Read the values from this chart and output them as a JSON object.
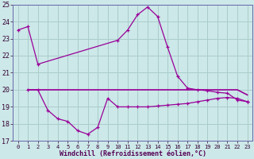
{
  "xlabel": "Windchill (Refroidissement éolien,°C)",
  "line_color": "#990099",
  "bg_color": "#cce8e8",
  "grid_color": "#aacccc",
  "ylim": [
    17,
    25
  ],
  "yticks": [
    17,
    18,
    19,
    20,
    21,
    22,
    23,
    24,
    25
  ],
  "xlim": [
    -0.5,
    23.5
  ],
  "line1_x": [
    0,
    1,
    2,
    10,
    11,
    12,
    13,
    14,
    15,
    16,
    17,
    18,
    19,
    20,
    21,
    22,
    23
  ],
  "line1_y": [
    23.5,
    23.7,
    21.5,
    22.9,
    23.5,
    24.4,
    24.85,
    24.3,
    22.5,
    20.8,
    20.1,
    20.0,
    19.95,
    19.85,
    19.8,
    19.4,
    19.3
  ],
  "line2_x": [
    1,
    2,
    3,
    4,
    5,
    6,
    7,
    8,
    9,
    10,
    11,
    12,
    13,
    14,
    15,
    16,
    17,
    18,
    19,
    20,
    21,
    22,
    23
  ],
  "line2_y": [
    20.0,
    20.0,
    18.8,
    18.3,
    18.15,
    17.6,
    17.4,
    17.8,
    19.5,
    19.0,
    19.0,
    19.0,
    19.0,
    19.05,
    19.1,
    19.15,
    19.2,
    19.3,
    19.4,
    19.5,
    19.55,
    19.5,
    19.3
  ],
  "line3_x": [
    1,
    2,
    3,
    4,
    5,
    6,
    7,
    8,
    9,
    10,
    11,
    12,
    13,
    14,
    15,
    16,
    17,
    18,
    19,
    20,
    21,
    22,
    23
  ],
  "line3_y": [
    20.0,
    20.0,
    20.0,
    20.0,
    20.0,
    20.0,
    20.0,
    20.0,
    20.0,
    20.0,
    20.0,
    20.0,
    20.0,
    20.0,
    20.0,
    20.0,
    20.0,
    20.0,
    20.0,
    20.0,
    20.0,
    20.0,
    19.7
  ],
  "xtick_labels": [
    "0",
    "1",
    "2",
    "3",
    "4",
    "5",
    "6",
    "7",
    "8",
    "9",
    "10",
    "11",
    "12",
    "13",
    "14",
    "15",
    "16",
    "17",
    "18",
    "19",
    "20",
    "21",
    "22",
    "23"
  ]
}
